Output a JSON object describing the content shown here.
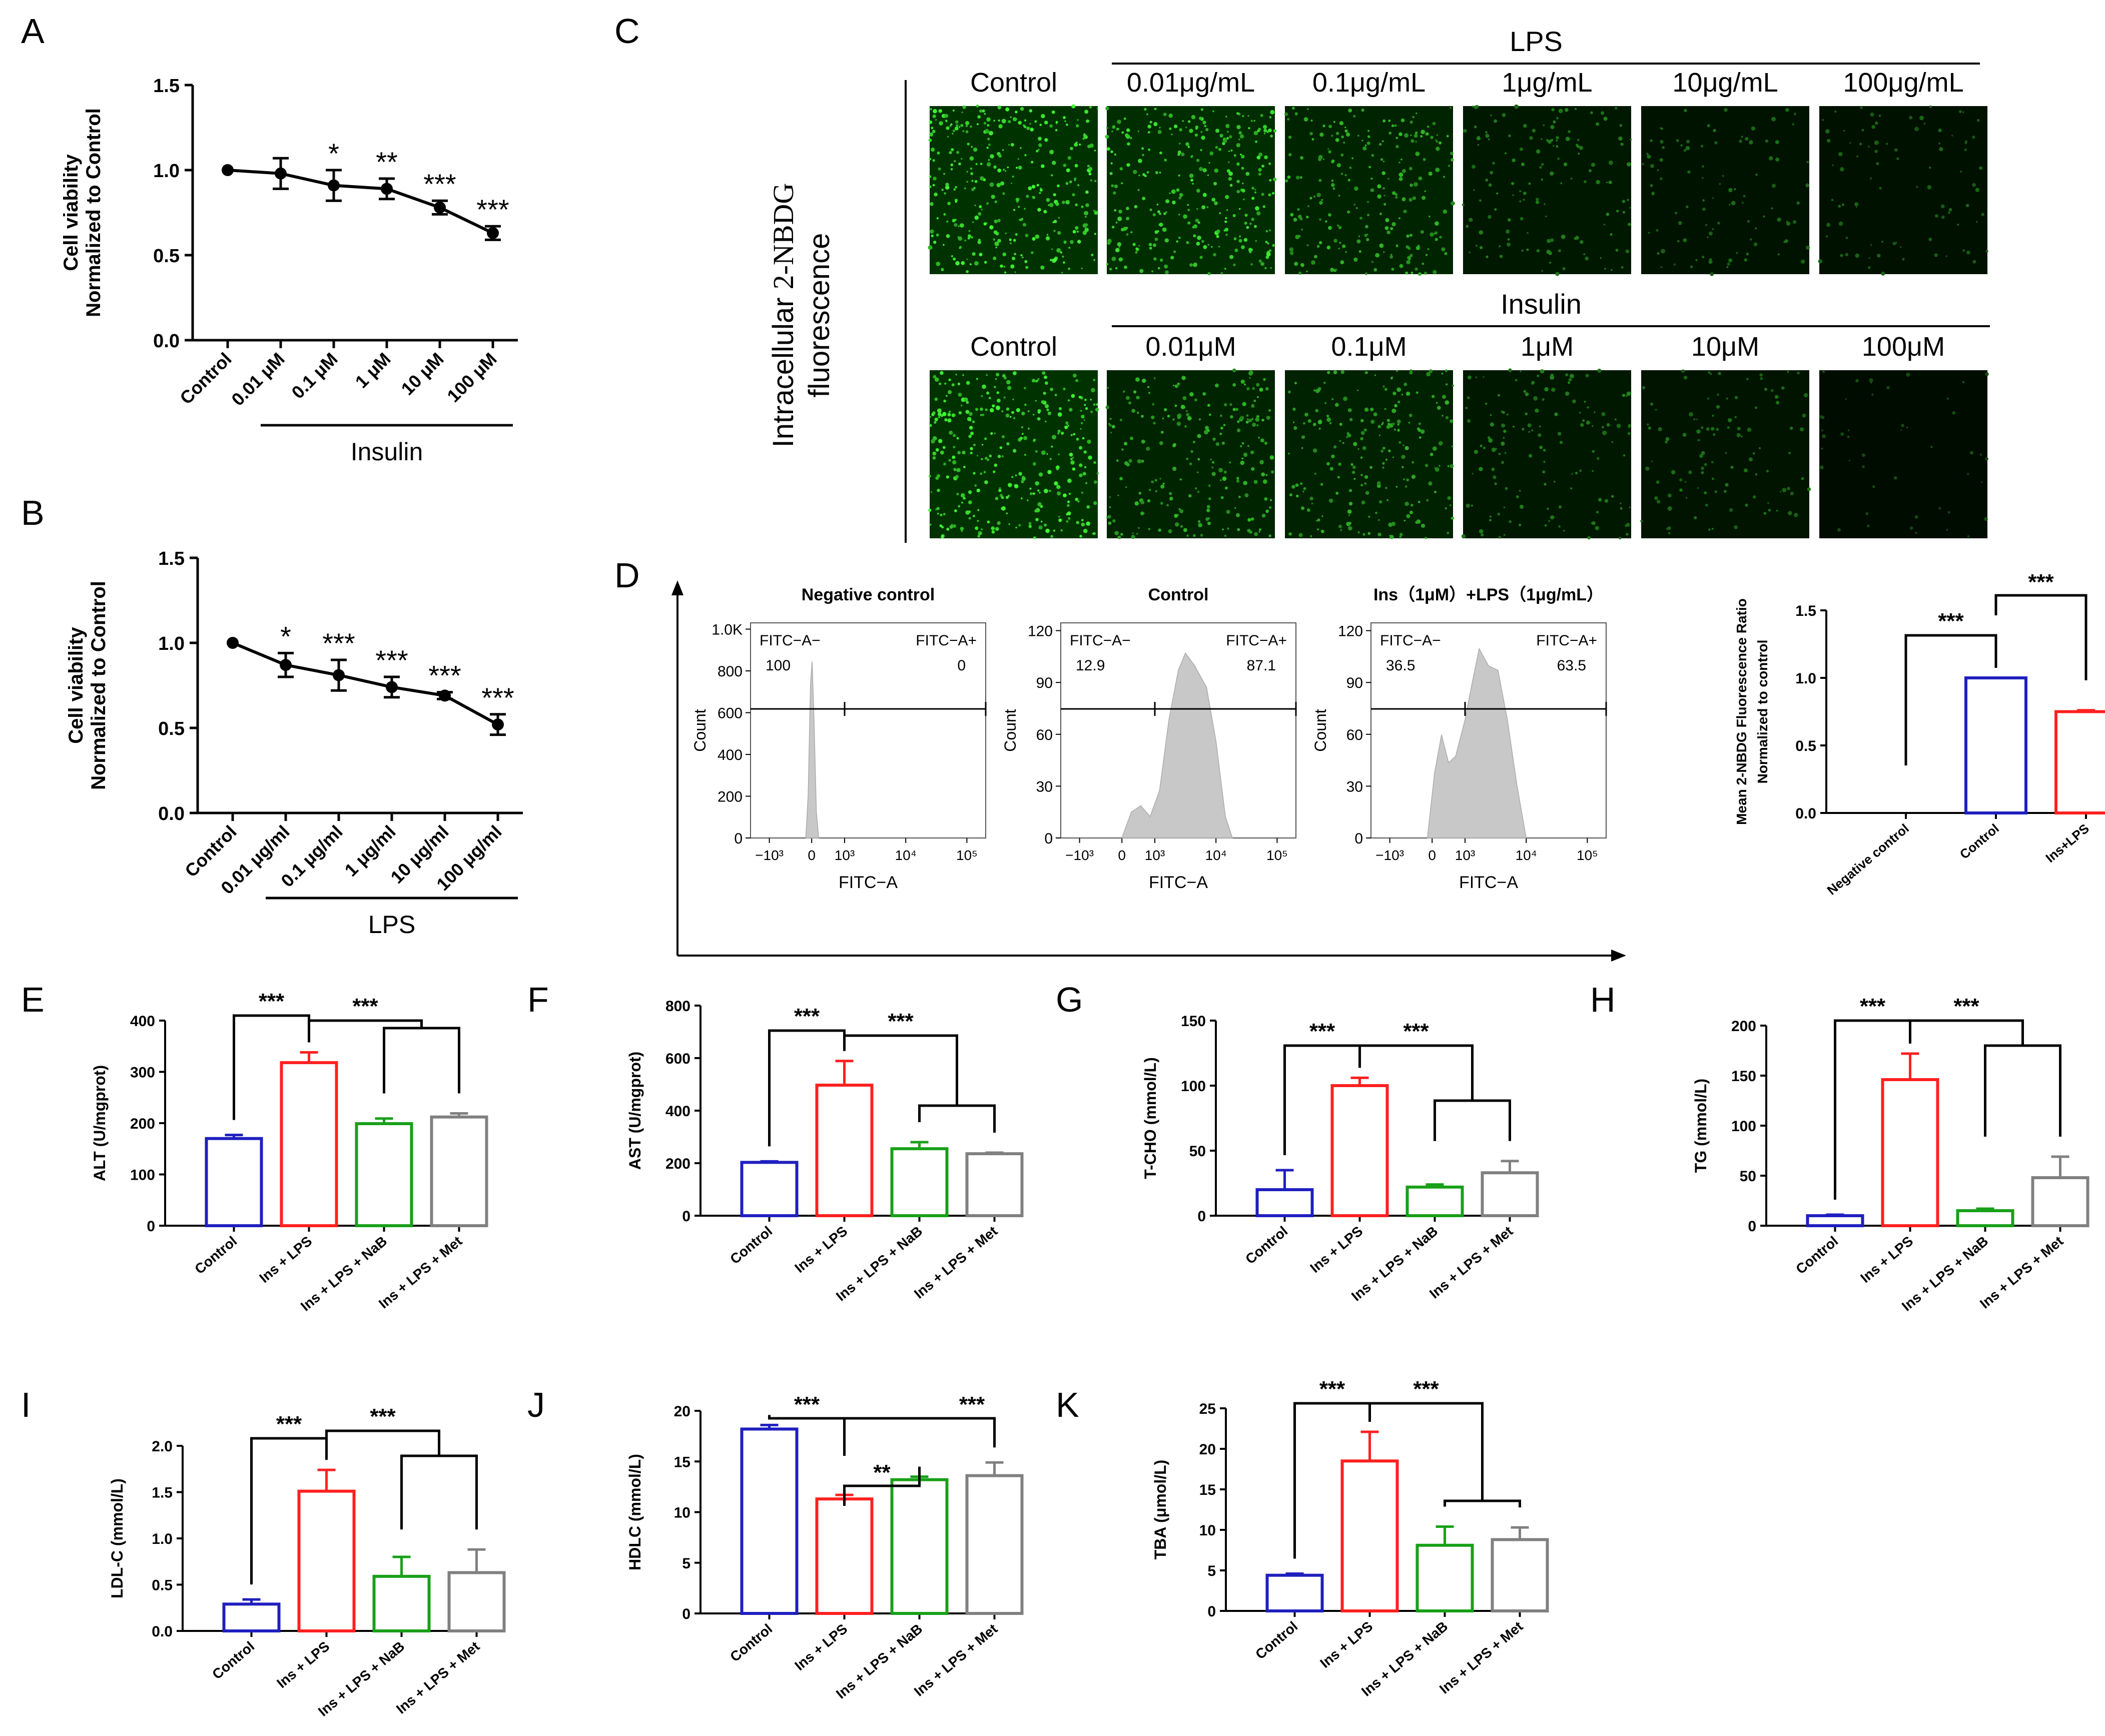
{
  "panel_letters": [
    "A",
    "B",
    "C",
    "D",
    "E",
    "F",
    "G",
    "H",
    "I",
    "J",
    "K"
  ],
  "panelC": {
    "side_label_1": "Intracellular",
    "side_label_2": "2-NBDG",
    "side_label_3": "fluorescence",
    "lps_group": "LPS",
    "insulin_group": "Insulin",
    "lps_cols": [
      "Control",
      "0.01μg/mL",
      "0.1μg/mL",
      "1μg/mL",
      "10μg/mL",
      "100μg/mL"
    ],
    "ins_cols": [
      "Control",
      "0.01μM",
      "0.1μM",
      "1μM",
      "10μM",
      "100μM"
    ],
    "lps_intensity": [
      1.0,
      0.9,
      0.65,
      0.35,
      0.22,
      0.18
    ],
    "ins_intensity": [
      1.0,
      0.65,
      0.6,
      0.35,
      0.25,
      0.05
    ]
  },
  "chart_data": [
    {
      "id": "A",
      "type": "line",
      "ylabel": [
        "Cell viability",
        "Normalized to Control"
      ],
      "categories": [
        "Control",
        "0.01 μM",
        "0.1 μM",
        "1 μM",
        "10 μM",
        "100 μM"
      ],
      "values": [
        1.0,
        0.98,
        0.91,
        0.89,
        0.78,
        0.63
      ],
      "errors": [
        0,
        0.09,
        0.09,
        0.06,
        0.04,
        0.04
      ],
      "sig": [
        "",
        "",
        "*",
        "**",
        "***",
        "***"
      ],
      "ylim": [
        0,
        1.5
      ],
      "yticks": [
        "0.0",
        "0.5",
        "1.0",
        "1.5"
      ],
      "group_label": "Insulin"
    },
    {
      "id": "B",
      "type": "line",
      "ylabel": [
        "Cell viability",
        "Normalized to Control"
      ],
      "categories": [
        "Control",
        "0.01 μg/ml",
        "0.1 μg/ml",
        "1 μg/ml",
        "10 μg/ml",
        "100 μg/ml"
      ],
      "values": [
        1.0,
        0.87,
        0.81,
        0.74,
        0.69,
        0.52
      ],
      "errors": [
        0,
        0.07,
        0.09,
        0.06,
        0.02,
        0.06
      ],
      "sig": [
        "",
        "*",
        "***",
        "***",
        "***",
        "***"
      ],
      "ylim": [
        0,
        1.5
      ],
      "yticks": [
        "0.0",
        "0.5",
        "1.0",
        "1.5"
      ],
      "group_label": "LPS"
    },
    {
      "id": "D1",
      "type": "area",
      "title": "Negative control",
      "xlabel": "FITC−A",
      "ylabel": "Count",
      "yticks": [
        "0",
        "200",
        "400",
        "600",
        "800",
        "1.0K"
      ],
      "xticks": [
        "−10³",
        "0",
        "10³",
        "10⁴",
        "10⁵"
      ],
      "gate_neg_label": "FITC−A−",
      "gate_pos_label": "FITC−A+",
      "gate_neg_value": "100",
      "gate_pos_value": "0"
    },
    {
      "id": "D2",
      "type": "area",
      "title": "Control",
      "xlabel": "FITC−A",
      "ylabel": "Count",
      "yticks": [
        "0",
        "30",
        "60",
        "90",
        "120"
      ],
      "xticks": [
        "−10³",
        "0",
        "10³",
        "10⁴",
        "10⁵"
      ],
      "gate_neg_label": "FITC−A−",
      "gate_pos_label": "FITC−A+",
      "gate_neg_value": "12.9",
      "gate_pos_value": "87.1"
    },
    {
      "id": "D3",
      "type": "area",
      "title": "Ins（1μM）+LPS（1μg/mL）",
      "xlabel": "FITC−A",
      "ylabel": "Count",
      "yticks": [
        "0",
        "30",
        "60",
        "90",
        "120"
      ],
      "xticks": [
        "−10³",
        "0",
        "10³",
        "10⁴",
        "10⁵"
      ],
      "gate_neg_label": "FITC−A−",
      "gate_pos_label": "FITC−A+",
      "gate_neg_value": "36.5",
      "gate_pos_value": "63.5"
    },
    {
      "id": "D4",
      "type": "bar",
      "ylabel": [
        "Mean 2-NBDG Fluorescence Ratio",
        "Normalized to control"
      ],
      "categories": [
        "Negative control",
        "Control",
        "Ins+LPS"
      ],
      "values": [
        0,
        1.0,
        0.75
      ],
      "errors": [
        0,
        0,
        0.01
      ],
      "colors": [
        "#000000",
        "#1f1fbf",
        "#ff2020"
      ],
      "ylim": [
        0,
        1.5
      ],
      "yticks": [
        "0.0",
        "0.5",
        "1.0",
        "1.5"
      ],
      "sig": [
        [
          "***",
          0,
          1
        ],
        [
          "***",
          1,
          2
        ]
      ]
    },
    {
      "id": "E",
      "type": "bar",
      "ylabel": "ALT (U/mgprot)",
      "categories": [
        "Control",
        "Ins + LPS",
        "Ins + LPS + NaB",
        "Ins + LPS + Met"
      ],
      "values": [
        170,
        318,
        199,
        212
      ],
      "errors": [
        7,
        20,
        10,
        7
      ],
      "ylim": [
        0,
        400
      ],
      "yticks": [
        "0",
        "100",
        "200",
        "300",
        "400"
      ],
      "sig": [
        "***",
        "***"
      ]
    },
    {
      "id": "F",
      "type": "bar",
      "ylabel": "AST (U/mgprot)",
      "categories": [
        "Control",
        "Ins + LPS",
        "Ins + LPS + NaB",
        "Ins + LPS + Met"
      ],
      "values": [
        203,
        497,
        255,
        236
      ],
      "errors": [
        4,
        92,
        25,
        4
      ],
      "ylim": [
        0,
        800
      ],
      "yticks": [
        "0",
        "200",
        "400",
        "600",
        "800"
      ],
      "sig": [
        "***",
        "***"
      ]
    },
    {
      "id": "G",
      "type": "bar",
      "ylabel": "T-CHO (mmol/L)",
      "categories": [
        "Control",
        "Ins + LPS",
        "Ins + LPS + NaB",
        "Ins + LPS + Met"
      ],
      "values": [
        20,
        100,
        22,
        33
      ],
      "errors": [
        15,
        6,
        2,
        9
      ],
      "ylim": [
        0,
        150
      ],
      "yticks": [
        "0",
        "50",
        "100",
        "150"
      ],
      "sig": [
        "***",
        "***"
      ]
    },
    {
      "id": "H",
      "type": "bar",
      "ylabel": "TG (mmol/L)",
      "categories": [
        "Control",
        "Ins + LPS",
        "Ins + LPS + NaB",
        "Ins + LPS + Met"
      ],
      "values": [
        10,
        146,
        15,
        48
      ],
      "errors": [
        1,
        26,
        2,
        21
      ],
      "ylim": [
        0,
        200
      ],
      "yticks": [
        "0",
        "50",
        "100",
        "150",
        "200"
      ],
      "sig": [
        "***",
        "***"
      ]
    },
    {
      "id": "I",
      "type": "bar",
      "ylabel": "LDL-C (mmol/L)",
      "categories": [
        "Control",
        "Ins + LPS",
        "Ins + LPS + NaB",
        "Ins + LPS + Met"
      ],
      "values": [
        0.29,
        1.51,
        0.59,
        0.63
      ],
      "errors": [
        0.05,
        0.23,
        0.21,
        0.25
      ],
      "ylim": [
        0,
        2.0
      ],
      "yticks": [
        "0.0",
        "0.5",
        "1.0",
        "1.5",
        "2.0"
      ],
      "sig": [
        "***",
        "***"
      ]
    },
    {
      "id": "J",
      "type": "bar",
      "ylabel": "HDLC (mmol/L)",
      "categories": [
        "Control",
        "Ins + LPS",
        "Ins + LPS + NaB",
        "Ins + LPS + Met"
      ],
      "values": [
        18.2,
        11.3,
        13.2,
        13.6
      ],
      "errors": [
        0.4,
        0.4,
        0.3,
        1.3
      ],
      "ylim": [
        0,
        20
      ],
      "yticks": [
        "0",
        "5",
        "10",
        "15",
        "20"
      ],
      "sig": [
        "***",
        "**",
        "***"
      ]
    },
    {
      "id": "K",
      "type": "bar",
      "ylabel": "TBA (μmol/L)",
      "categories": [
        "Control",
        "Ins + LPS",
        "Ins + LPS + NaB",
        "Ins + LPS + Met"
      ],
      "values": [
        4.4,
        18.5,
        8.1,
        8.8
      ],
      "errors": [
        0.2,
        3.6,
        2.3,
        1.5
      ],
      "ylim": [
        0,
        25
      ],
      "yticks": [
        "0",
        "5",
        "10",
        "15",
        "20",
        "25"
      ],
      "sig": [
        "***",
        "***"
      ]
    }
  ],
  "bar_colors": [
    "#1f1fbf",
    "#ff2020",
    "#18a018",
    "#808080"
  ]
}
